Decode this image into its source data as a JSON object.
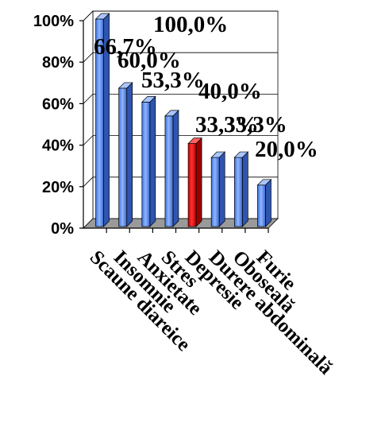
{
  "chart_data": {
    "type": "bar",
    "title": "",
    "xlabel": "",
    "ylabel": "",
    "ylim": [
      0,
      100
    ],
    "yticks": [
      0,
      20,
      40,
      60,
      80,
      100
    ],
    "ytick_labels": [
      "0%",
      "20%",
      "40%",
      "60%",
      "80%",
      "100%"
    ],
    "grid": true,
    "legend": "none",
    "three_d": true,
    "categories": [
      "Scaune diareice",
      "Insomnie",
      "Anxietate",
      "Stres",
      "Depresie",
      "Durere abdominală",
      "Oboseală",
      "Furie"
    ],
    "values": [
      100.0,
      66.7,
      60.0,
      53.3,
      40.0,
      33.3,
      33.3,
      20.0
    ],
    "data_labels": [
      "100,0%",
      "66,7%",
      "60,0%",
      "53,3%",
      "40,0%",
      "33,3%",
      "33,3%",
      "20,0%"
    ],
    "colors": {
      "default_bar": "#6f9ef0",
      "highlight_bar": "#ff0000",
      "floor": "#9a9a9a",
      "wall": "#ffffff",
      "grid": "#000000"
    },
    "highlight_index": 4
  }
}
